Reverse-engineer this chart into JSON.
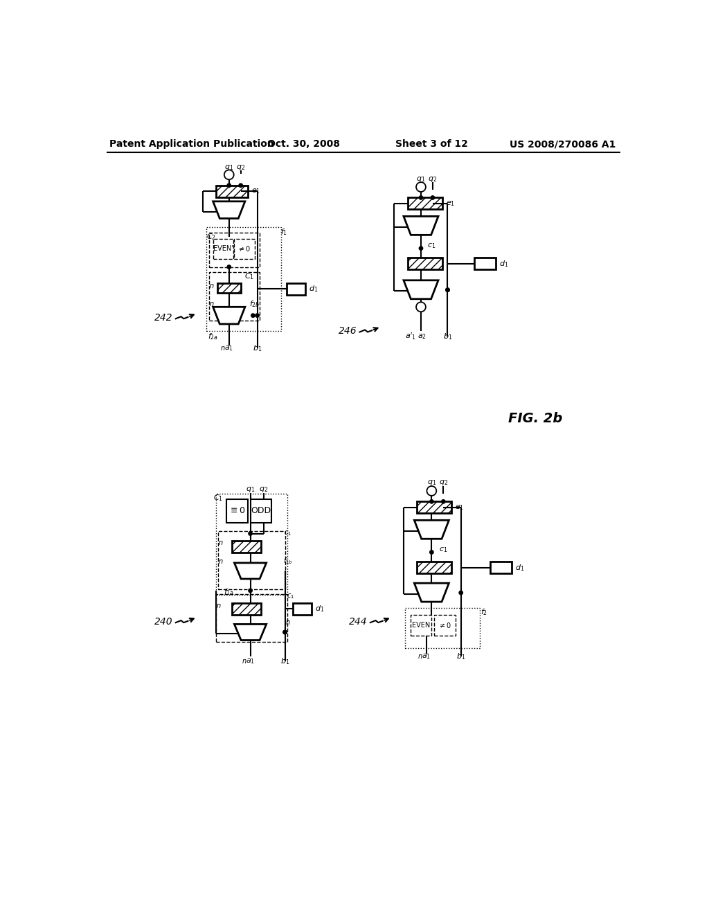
{
  "bg_color": "#ffffff",
  "header_text": "Patent Application Publication",
  "header_date": "Oct. 30, 2008",
  "header_sheet": "Sheet 3 of 12",
  "header_patent": "US 2008/270086 A1",
  "fig_label": "FIG. 2b"
}
